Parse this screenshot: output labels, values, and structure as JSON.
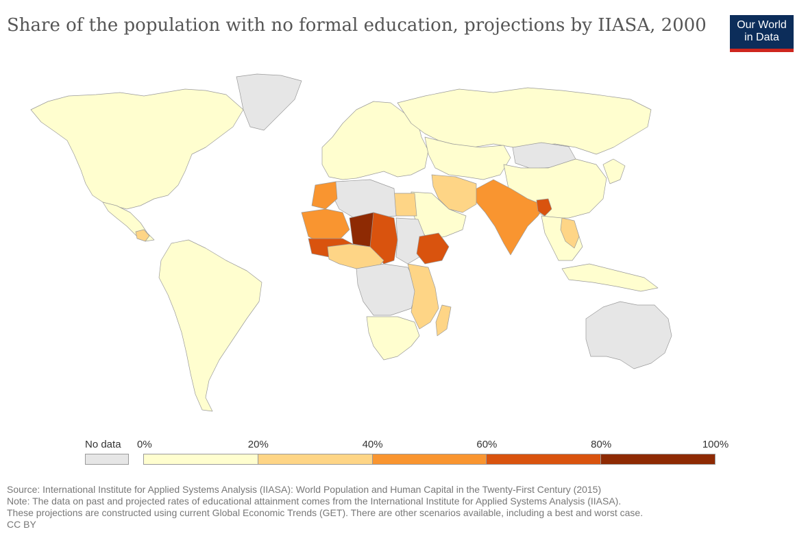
{
  "header": {
    "title": "Share of the population with no formal education, projections by IIASA, 2000",
    "logo_line1": "Our World",
    "logo_line2": "in Data"
  },
  "legend": {
    "no_data_label": "No data",
    "ticks": [
      "0%",
      "20%",
      "40%",
      "60%",
      "80%",
      "100%"
    ],
    "colors": [
      "#fffecf",
      "#fed586",
      "#f99530",
      "#d9530e",
      "#8e2a03"
    ],
    "no_data_color": "#e6e6e6"
  },
  "footer": {
    "source": "Source: International Institute for Applied Systems Analysis (IIASA): World Population and Human Capital in the Twenty-First Century (2015)",
    "note": "Note: The data on past and projected rates of educational attainment comes from the International Institute for Applied Systems Analysis (IIASA).",
    "note2": "These projections are constructed using current Global Economic Trends (GET). There are other scenarios available, including a best and worst case.",
    "license": "CC BY"
  },
  "map": {
    "regions": [
      {
        "name": "north-america",
        "bin": 0
      },
      {
        "name": "greenland",
        "bin": -1
      },
      {
        "name": "central-america-mexico",
        "bin": 0
      },
      {
        "name": "guatemala-region",
        "bin": 1
      },
      {
        "name": "south-america",
        "bin": 0
      },
      {
        "name": "europe",
        "bin": 0
      },
      {
        "name": "russia",
        "bin": 0
      },
      {
        "name": "central-asia",
        "bin": 0
      },
      {
        "name": "mongolia",
        "bin": -1
      },
      {
        "name": "china",
        "bin": 0
      },
      {
        "name": "southeast-asia",
        "bin": 0
      },
      {
        "name": "indochina",
        "bin": 1
      },
      {
        "name": "india-pakistan",
        "bin": 2
      },
      {
        "name": "bangladesh",
        "bin": 3
      },
      {
        "name": "iran",
        "bin": 1
      },
      {
        "name": "arabia",
        "bin": 0
      },
      {
        "name": "egypt",
        "bin": 1
      },
      {
        "name": "libya-algeria",
        "bin": -1
      },
      {
        "name": "morocco",
        "bin": 2
      },
      {
        "name": "mauritania-mali",
        "bin": 2
      },
      {
        "name": "niger",
        "bin": 4
      },
      {
        "name": "burkina-region",
        "bin": 3
      },
      {
        "name": "chad",
        "bin": 3
      },
      {
        "name": "sudan",
        "bin": -1
      },
      {
        "name": "ethiopia",
        "bin": 3
      },
      {
        "name": "nigeria",
        "bin": 1
      },
      {
        "name": "central-africa",
        "bin": -1
      },
      {
        "name": "east-africa",
        "bin": 1
      },
      {
        "name": "southern-africa",
        "bin": 0
      },
      {
        "name": "madagascar",
        "bin": 1
      },
      {
        "name": "australia",
        "bin": -1
      },
      {
        "name": "japan-korea",
        "bin": 0
      },
      {
        "name": "indonesia",
        "bin": 0
      }
    ]
  }
}
